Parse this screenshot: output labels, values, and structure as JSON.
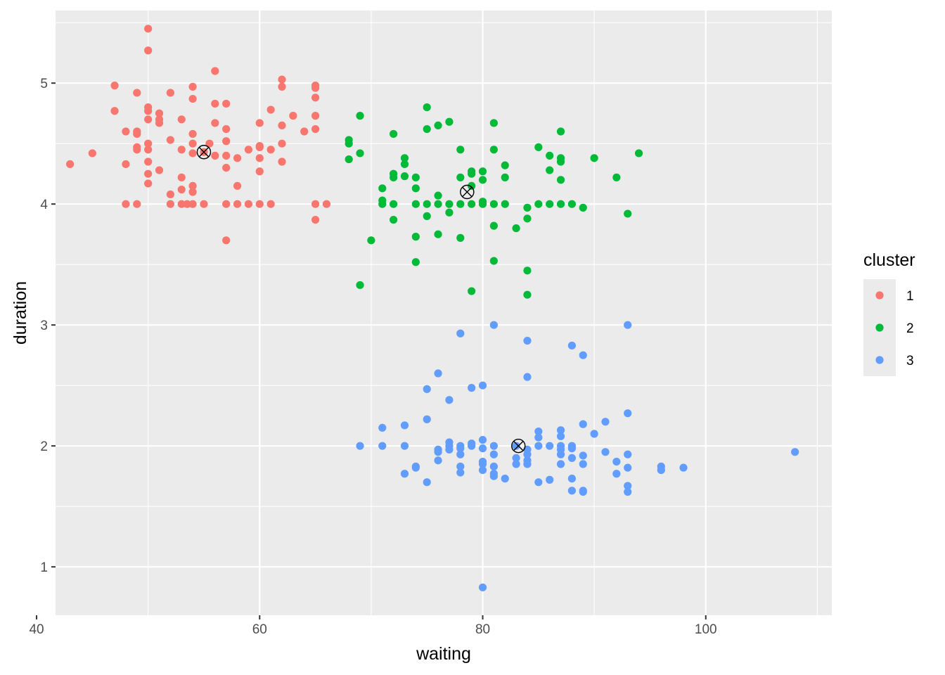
{
  "chart_data": {
    "type": "scatter",
    "xlabel": "waiting",
    "ylabel": "duration",
    "xlim": [
      41.7,
      111.3
    ],
    "ylim": [
      0.6,
      5.6
    ],
    "x_ticks": [
      40,
      60,
      80,
      100
    ],
    "x_tick_labels": [
      "40",
      "60",
      "80",
      "100"
    ],
    "y_ticks": [
      1,
      2,
      3,
      4,
      5
    ],
    "y_tick_labels": [
      "1",
      "2",
      "3",
      "4",
      "5"
    ],
    "grid": true,
    "panel_background": "#ebebeb",
    "legend": {
      "title": "cluster",
      "placement": "right",
      "entries": [
        {
          "label": "1",
          "color": "#F8766D"
        },
        {
          "label": "2",
          "color": "#00BA38"
        },
        {
          "label": "3",
          "color": "#619CFF"
        }
      ]
    },
    "series": [
      {
        "name": "1",
        "color": "#F8766D",
        "points": [
          [
            43,
            4.33
          ],
          [
            45,
            4.42
          ],
          [
            47,
            4.98
          ],
          [
            47,
            4.77
          ],
          [
            48,
            4.6
          ],
          [
            48,
            4.33
          ],
          [
            48,
            4.0
          ],
          [
            49,
            4.92
          ],
          [
            49,
            4.6
          ],
          [
            49,
            4.58
          ],
          [
            49,
            4.47
          ],
          [
            49,
            4.45
          ],
          [
            49,
            4.0
          ],
          [
            50,
            5.45
          ],
          [
            50,
            5.27
          ],
          [
            50,
            4.8
          ],
          [
            50,
            4.77
          ],
          [
            50,
            4.7
          ],
          [
            50,
            4.5
          ],
          [
            50,
            4.45
          ],
          [
            50,
            4.35
          ],
          [
            50,
            4.25
          ],
          [
            50,
            4.17
          ],
          [
            51,
            4.75
          ],
          [
            51,
            4.7
          ],
          [
            51,
            4.67
          ],
          [
            51,
            4.28
          ],
          [
            52,
            4.92
          ],
          [
            52,
            4.53
          ],
          [
            52,
            4.08
          ],
          [
            52,
            4.0
          ],
          [
            53,
            4.7
          ],
          [
            53,
            4.45
          ],
          [
            53,
            4.22
          ],
          [
            53,
            4.12
          ],
          [
            53,
            4.0
          ],
          [
            54,
            4.97
          ],
          [
            54,
            4.87
          ],
          [
            54,
            4.58
          ],
          [
            54,
            4.5
          ],
          [
            54,
            4.42
          ],
          [
            54,
            4.15
          ],
          [
            54,
            4.1
          ],
          [
            54,
            4.0
          ],
          [
            55,
            4.43
          ],
          [
            55,
            4.0
          ],
          [
            56,
            5.1
          ],
          [
            56,
            4.83
          ],
          [
            56,
            4.67
          ],
          [
            56,
            4.4
          ],
          [
            57,
            4.83
          ],
          [
            57,
            4.62
          ],
          [
            57,
            4.52
          ],
          [
            57,
            4.4
          ],
          [
            57,
            4.3
          ],
          [
            57,
            4.0
          ],
          [
            57,
            3.7
          ],
          [
            58,
            4.38
          ],
          [
            58,
            4.15
          ],
          [
            58,
            4.0
          ],
          [
            59,
            4.45
          ],
          [
            59,
            4.0
          ],
          [
            60,
            4.67
          ],
          [
            60,
            4.48
          ],
          [
            60,
            4.47
          ],
          [
            60,
            4.38
          ],
          [
            60,
            4.27
          ],
          [
            60,
            4.0
          ],
          [
            61,
            4.78
          ],
          [
            61,
            4.45
          ],
          [
            61,
            4.0
          ],
          [
            62,
            5.03
          ],
          [
            62,
            4.97
          ],
          [
            62,
            4.65
          ],
          [
            62,
            4.5
          ],
          [
            62,
            4.35
          ],
          [
            63,
            4.73
          ],
          [
            64,
            4.6
          ],
          [
            65,
            4.98
          ],
          [
            65,
            4.96
          ],
          [
            65,
            4.88
          ],
          [
            65,
            4.73
          ],
          [
            65,
            4.62
          ],
          [
            65,
            4.0
          ],
          [
            65,
            3.87
          ],
          [
            66,
            4.0
          ],
          [
            55.5,
            4.5
          ],
          [
            53.5,
            4.0
          ]
        ]
      },
      {
        "name": "2",
        "color": "#00BA38",
        "points": [
          [
            68,
            4.53
          ],
          [
            68,
            4.5
          ],
          [
            68,
            4.37
          ],
          [
            69,
            4.73
          ],
          [
            69,
            4.42
          ],
          [
            69,
            3.33
          ],
          [
            70,
            3.7
          ],
          [
            71,
            4.13
          ],
          [
            71,
            4.03
          ],
          [
            71,
            4.0
          ],
          [
            72,
            4.58
          ],
          [
            72,
            4.25
          ],
          [
            72,
            4.22
          ],
          [
            72,
            4.0
          ],
          [
            72,
            3.87
          ],
          [
            73,
            4.38
          ],
          [
            73,
            4.33
          ],
          [
            73,
            4.23
          ],
          [
            74,
            4.22
          ],
          [
            74,
            4.13
          ],
          [
            74,
            4.0
          ],
          [
            74,
            3.73
          ],
          [
            74,
            3.52
          ],
          [
            75,
            4.8
          ],
          [
            75,
            4.62
          ],
          [
            75,
            4.0
          ],
          [
            75,
            3.9
          ],
          [
            76,
            4.65
          ],
          [
            76,
            4.07
          ],
          [
            76,
            4.0
          ],
          [
            76,
            3.75
          ],
          [
            77,
            4.68
          ],
          [
            77,
            4.0
          ],
          [
            77,
            3.93
          ],
          [
            78,
            4.45
          ],
          [
            78,
            4.22
          ],
          [
            78,
            4.0
          ],
          [
            78,
            3.72
          ],
          [
            79,
            4.27
          ],
          [
            79,
            4.25
          ],
          [
            79,
            4.15
          ],
          [
            79,
            4.0
          ],
          [
            79,
            3.28
          ],
          [
            80,
            4.27
          ],
          [
            80,
            4.2
          ],
          [
            80,
            4.02
          ],
          [
            80,
            4.0
          ],
          [
            81,
            4.67
          ],
          [
            81,
            4.45
          ],
          [
            81,
            4.0
          ],
          [
            81,
            3.82
          ],
          [
            81,
            3.53
          ],
          [
            82,
            4.32
          ],
          [
            82,
            4.22
          ],
          [
            82,
            4.0
          ],
          [
            83,
            3.8
          ],
          [
            84,
            3.97
          ],
          [
            84,
            3.88
          ],
          [
            84,
            3.45
          ],
          [
            84,
            3.25
          ],
          [
            85,
            4.47
          ],
          [
            85,
            4.0
          ],
          [
            86,
            4.4
          ],
          [
            86,
            4.28
          ],
          [
            86,
            4.0
          ],
          [
            87,
            4.6
          ],
          [
            87,
            4.38
          ],
          [
            87,
            4.35
          ],
          [
            87,
            4.2
          ],
          [
            87,
            4.0
          ],
          [
            88,
            4.0
          ],
          [
            89,
            3.97
          ],
          [
            90,
            4.38
          ],
          [
            92,
            4.22
          ],
          [
            93,
            3.92
          ],
          [
            94,
            4.42
          ]
        ]
      },
      {
        "name": "3",
        "color": "#619CFF",
        "points": [
          [
            69,
            2.0
          ],
          [
            71,
            2.15
          ],
          [
            71,
            2.0
          ],
          [
            73,
            2.17
          ],
          [
            73,
            2.0
          ],
          [
            73,
            1.77
          ],
          [
            74,
            1.83
          ],
          [
            74,
            1.82
          ],
          [
            75,
            2.47
          ],
          [
            75,
            2.22
          ],
          [
            75,
            1.7
          ],
          [
            76,
            2.6
          ],
          [
            76,
            1.97
          ],
          [
            76,
            1.95
          ],
          [
            76,
            1.88
          ],
          [
            77,
            2.38
          ],
          [
            77,
            2.03
          ],
          [
            77,
            2.0
          ],
          [
            77,
            1.97
          ],
          [
            78,
            2.93
          ],
          [
            78,
            2.0
          ],
          [
            78,
            1.98
          ],
          [
            78,
            1.93
          ],
          [
            78,
            1.83
          ],
          [
            78,
            1.78
          ],
          [
            79,
            2.48
          ],
          [
            79,
            2.02
          ],
          [
            79,
            2.0
          ],
          [
            80,
            2.5
          ],
          [
            80,
            2.05
          ],
          [
            80,
            1.98
          ],
          [
            80,
            1.87
          ],
          [
            80,
            1.85
          ],
          [
            80,
            1.8
          ],
          [
            80,
            0.83
          ],
          [
            81,
            3.0
          ],
          [
            81,
            2.0
          ],
          [
            81,
            1.93
          ],
          [
            81,
            1.83
          ],
          [
            81,
            1.77
          ],
          [
            81,
            1.75
          ],
          [
            82,
            1.73
          ],
          [
            83,
            2.0
          ],
          [
            83,
            1.9
          ],
          [
            83,
            1.85
          ],
          [
            84,
            2.87
          ],
          [
            84,
            2.57
          ],
          [
            84,
            1.97
          ],
          [
            84,
            1.93
          ],
          [
            84,
            1.88
          ],
          [
            84,
            1.85
          ],
          [
            85,
            2.12
          ],
          [
            85,
            2.07
          ],
          [
            85,
            2.0
          ],
          [
            85,
            1.7
          ],
          [
            86,
            2.0
          ],
          [
            86,
            1.72
          ],
          [
            87,
            2.13
          ],
          [
            87,
            2.08
          ],
          [
            87,
            2.0
          ],
          [
            87,
            1.97
          ],
          [
            87,
            1.93
          ],
          [
            87,
            1.85
          ],
          [
            88,
            2.83
          ],
          [
            88,
            2.0
          ],
          [
            88,
            1.98
          ],
          [
            88,
            1.9
          ],
          [
            88,
            1.73
          ],
          [
            88,
            1.63
          ],
          [
            89,
            2.75
          ],
          [
            89,
            2.18
          ],
          [
            89,
            1.92
          ],
          [
            89,
            1.85
          ],
          [
            89,
            1.63
          ],
          [
            89,
            1.62
          ],
          [
            90,
            2.1
          ],
          [
            91,
            2.2
          ],
          [
            91,
            1.95
          ],
          [
            92,
            1.87
          ],
          [
            92,
            1.77
          ],
          [
            93,
            3.0
          ],
          [
            93,
            2.27
          ],
          [
            93,
            1.93
          ],
          [
            93,
            1.82
          ],
          [
            93,
            1.67
          ],
          [
            93,
            1.62
          ],
          [
            96,
            1.83
          ],
          [
            96,
            1.8
          ],
          [
            98,
            1.82
          ],
          [
            108,
            1.95
          ]
        ]
      }
    ],
    "centers": [
      {
        "name": "1",
        "x": 55.0,
        "y": 4.43
      },
      {
        "name": "2",
        "x": 78.6,
        "y": 4.1
      },
      {
        "name": "3",
        "x": 83.2,
        "y": 2.0
      }
    ]
  }
}
